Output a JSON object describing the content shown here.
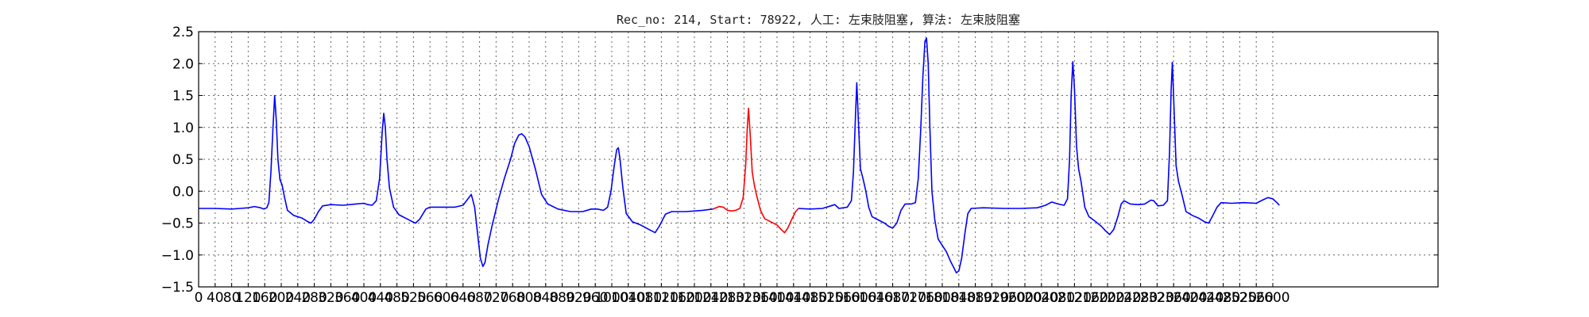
{
  "chart_data": {
    "type": "line",
    "title": "Rec_no: 214, Start: 78922, 人工: 左束肢阻塞, 算法: 左束肢阻塞",
    "xlabel": "",
    "ylabel": "",
    "xlim": [
      0,
      3000
    ],
    "ylim": [
      -1.5,
      2.5
    ],
    "grid": true,
    "x_ticks": [
      0,
      40,
      80,
      120,
      160,
      200,
      240,
      280,
      320,
      360,
      400,
      440,
      480,
      520,
      560,
      600,
      640,
      680,
      720,
      760,
      800,
      840,
      880,
      920,
      960,
      1000,
      1040,
      1080,
      1120,
      1160,
      1200,
      1240,
      1280,
      1320,
      1360,
      1400,
      1440,
      1480,
      1520,
      1560,
      1600,
      1640,
      1680,
      1720,
      1760,
      1800,
      1840,
      1880,
      1920,
      1960,
      2000,
      2040,
      2080,
      2120,
      2160,
      2200,
      2240,
      2280,
      2320,
      2360,
      2400,
      2440,
      2480,
      2520,
      2560,
      2600
    ],
    "y_ticks": [
      -1.5,
      -1.0,
      -0.5,
      0.0,
      0.5,
      1.0,
      1.5,
      2.0,
      2.5
    ],
    "y_tick_labels": [
      "−1.5",
      "−1.0",
      "−0.5",
      "0.0",
      "0.5",
      "1.0",
      "1.5",
      "2.0",
      "2.5"
    ],
    "series": [
      {
        "color": "#0000ff",
        "points": [
          [
            0,
            -0.27
          ],
          [
            40,
            -0.27
          ],
          [
            80,
            -0.28
          ],
          [
            100,
            -0.27
          ],
          [
            120,
            -0.26
          ],
          [
            135,
            -0.24
          ],
          [
            150,
            -0.26
          ],
          [
            158,
            -0.28
          ],
          [
            165,
            -0.26
          ],
          [
            170,
            -0.18
          ],
          [
            175,
            0.3
          ],
          [
            180,
            1.0
          ],
          [
            184,
            1.5
          ],
          [
            188,
            1.1
          ],
          [
            192,
            0.5
          ],
          [
            197,
            0.18
          ],
          [
            202,
            0.1
          ],
          [
            208,
            -0.1
          ],
          [
            215,
            -0.3
          ],
          [
            230,
            -0.38
          ],
          [
            250,
            -0.42
          ],
          [
            265,
            -0.48
          ],
          [
            272,
            -0.5
          ],
          [
            280,
            -0.44
          ],
          [
            290,
            -0.32
          ],
          [
            300,
            -0.23
          ],
          [
            320,
            -0.21
          ],
          [
            350,
            -0.22
          ],
          [
            380,
            -0.2
          ],
          [
            400,
            -0.19
          ],
          [
            410,
            -0.21
          ],
          [
            420,
            -0.22
          ],
          [
            430,
            -0.15
          ],
          [
            438,
            0.2
          ],
          [
            444,
            0.9
          ],
          [
            448,
            1.22
          ],
          [
            452,
            1.0
          ],
          [
            456,
            0.5
          ],
          [
            462,
            0.05
          ],
          [
            472,
            -0.25
          ],
          [
            485,
            -0.37
          ],
          [
            500,
            -0.42
          ],
          [
            515,
            -0.47
          ],
          [
            525,
            -0.5
          ],
          [
            535,
            -0.44
          ],
          [
            550,
            -0.28
          ],
          [
            560,
            -0.25
          ],
          [
            590,
            -0.25
          ],
          [
            620,
            -0.25
          ],
          [
            640,
            -0.22
          ],
          [
            652,
            -0.12
          ],
          [
            660,
            -0.05
          ],
          [
            668,
            -0.25
          ],
          [
            675,
            -0.65
          ],
          [
            682,
            -1.05
          ],
          [
            688,
            -1.18
          ],
          [
            693,
            -1.12
          ],
          [
            700,
            -0.85
          ],
          [
            710,
            -0.55
          ],
          [
            725,
            -0.15
          ],
          [
            740,
            0.2
          ],
          [
            755,
            0.5
          ],
          [
            765,
            0.75
          ],
          [
            775,
            0.88
          ],
          [
            782,
            0.9
          ],
          [
            790,
            0.85
          ],
          [
            800,
            0.7
          ],
          [
            815,
            0.35
          ],
          [
            830,
            -0.05
          ],
          [
            845,
            -0.2
          ],
          [
            870,
            -0.28
          ],
          [
            900,
            -0.32
          ],
          [
            930,
            -0.32
          ],
          [
            950,
            -0.28
          ],
          [
            965,
            -0.28
          ],
          [
            980,
            -0.3
          ],
          [
            990,
            -0.25
          ],
          [
            998,
            0.0
          ],
          [
            1006,
            0.4
          ],
          [
            1012,
            0.65
          ],
          [
            1016,
            0.68
          ],
          [
            1020,
            0.5
          ],
          [
            1027,
            0.05
          ],
          [
            1035,
            -0.35
          ],
          [
            1050,
            -0.48
          ],
          [
            1070,
            -0.53
          ],
          [
            1090,
            -0.6
          ],
          [
            1105,
            -0.65
          ],
          [
            1115,
            -0.55
          ],
          [
            1130,
            -0.36
          ],
          [
            1145,
            -0.32
          ],
          [
            1180,
            -0.32
          ],
          [
            1220,
            -0.3
          ],
          [
            1245,
            -0.28
          ]
        ]
      },
      {
        "color": "#ff0000",
        "points": [
          [
            1245,
            -0.28
          ],
          [
            1260,
            -0.24
          ],
          [
            1270,
            -0.25
          ],
          [
            1280,
            -0.3
          ],
          [
            1290,
            -0.31
          ],
          [
            1300,
            -0.3
          ],
          [
            1310,
            -0.27
          ],
          [
            1318,
            -0.1
          ],
          [
            1324,
            0.4
          ],
          [
            1328,
            1.0
          ],
          [
            1331,
            1.3
          ],
          [
            1335,
            0.9
          ],
          [
            1340,
            0.3
          ],
          [
            1345,
            0.1
          ],
          [
            1350,
            -0.05
          ],
          [
            1360,
            -0.3
          ],
          [
            1370,
            -0.43
          ],
          [
            1385,
            -0.48
          ],
          [
            1400,
            -0.53
          ],
          [
            1410,
            -0.6
          ],
          [
            1418,
            -0.65
          ],
          [
            1426,
            -0.58
          ],
          [
            1435,
            -0.45
          ],
          [
            1445,
            -0.32
          ],
          [
            1452,
            -0.27
          ]
        ]
      },
      {
        "color": "#0000ff",
        "points": [
          [
            1452,
            -0.27
          ],
          [
            1480,
            -0.28
          ],
          [
            1510,
            -0.27
          ],
          [
            1530,
            -0.23
          ],
          [
            1540,
            -0.21
          ],
          [
            1550,
            -0.27
          ],
          [
            1570,
            -0.25
          ],
          [
            1580,
            -0.15
          ],
          [
            1585,
            0.3
          ],
          [
            1590,
            1.2
          ],
          [
            1593,
            1.7
          ],
          [
            1597,
            1.1
          ],
          [
            1602,
            0.35
          ],
          [
            1608,
            0.2
          ],
          [
            1615,
            0.0
          ],
          [
            1622,
            -0.25
          ],
          [
            1630,
            -0.4
          ],
          [
            1645,
            -0.45
          ],
          [
            1660,
            -0.5
          ],
          [
            1670,
            -0.55
          ],
          [
            1680,
            -0.58
          ],
          [
            1690,
            -0.5
          ],
          [
            1700,
            -0.3
          ],
          [
            1710,
            -0.2
          ],
          [
            1725,
            -0.2
          ],
          [
            1735,
            -0.18
          ],
          [
            1742,
            0.2
          ],
          [
            1748,
            1.0
          ],
          [
            1753,
            1.8
          ],
          [
            1758,
            2.35
          ],
          [
            1762,
            2.4
          ],
          [
            1766,
            2.0
          ],
          [
            1770,
            1.0
          ],
          [
            1775,
            0.0
          ],
          [
            1782,
            -0.45
          ],
          [
            1790,
            -0.75
          ],
          [
            1800,
            -0.85
          ],
          [
            1810,
            -0.95
          ],
          [
            1820,
            -1.1
          ],
          [
            1828,
            -1.2
          ],
          [
            1834,
            -1.28
          ],
          [
            1840,
            -1.25
          ],
          [
            1847,
            -1.05
          ],
          [
            1855,
            -0.65
          ],
          [
            1862,
            -0.35
          ],
          [
            1870,
            -0.27
          ],
          [
            1900,
            -0.26
          ],
          [
            1950,
            -0.27
          ],
          [
            1990,
            -0.27
          ],
          [
            2030,
            -0.26
          ],
          [
            2050,
            -0.22
          ],
          [
            2065,
            -0.17
          ],
          [
            2080,
            -0.2
          ],
          [
            2095,
            -0.22
          ],
          [
            2103,
            -0.12
          ],
          [
            2108,
            0.5
          ],
          [
            2112,
            1.5
          ],
          [
            2116,
            2.03
          ],
          [
            2120,
            1.6
          ],
          [
            2125,
            0.7
          ],
          [
            2130,
            0.35
          ],
          [
            2136,
            0.15
          ],
          [
            2145,
            -0.25
          ],
          [
            2155,
            -0.4
          ],
          [
            2170,
            -0.47
          ],
          [
            2185,
            -0.55
          ],
          [
            2195,
            -0.62
          ],
          [
            2205,
            -0.68
          ],
          [
            2215,
            -0.6
          ],
          [
            2225,
            -0.4
          ],
          [
            2233,
            -0.2
          ],
          [
            2240,
            -0.15
          ],
          [
            2255,
            -0.2
          ],
          [
            2275,
            -0.21
          ],
          [
            2290,
            -0.2
          ],
          [
            2305,
            -0.14
          ],
          [
            2312,
            -0.15
          ],
          [
            2322,
            -0.23
          ],
          [
            2335,
            -0.22
          ],
          [
            2345,
            -0.15
          ],
          [
            2350,
            0.6
          ],
          [
            2354,
            1.6
          ],
          [
            2357,
            2.02
          ],
          [
            2361,
            1.3
          ],
          [
            2366,
            0.4
          ],
          [
            2372,
            0.15
          ],
          [
            2380,
            -0.05
          ],
          [
            2390,
            -0.32
          ],
          [
            2405,
            -0.38
          ],
          [
            2420,
            -0.42
          ],
          [
            2435,
            -0.48
          ],
          [
            2445,
            -0.5
          ],
          [
            2455,
            -0.38
          ],
          [
            2465,
            -0.25
          ],
          [
            2475,
            -0.18
          ],
          [
            2500,
            -0.19
          ],
          [
            2530,
            -0.18
          ],
          [
            2560,
            -0.19
          ],
          [
            2575,
            -0.14
          ],
          [
            2588,
            -0.1
          ],
          [
            2600,
            -0.12
          ],
          [
            2610,
            -0.18
          ],
          [
            2616,
            -0.22
          ]
        ]
      }
    ]
  }
}
